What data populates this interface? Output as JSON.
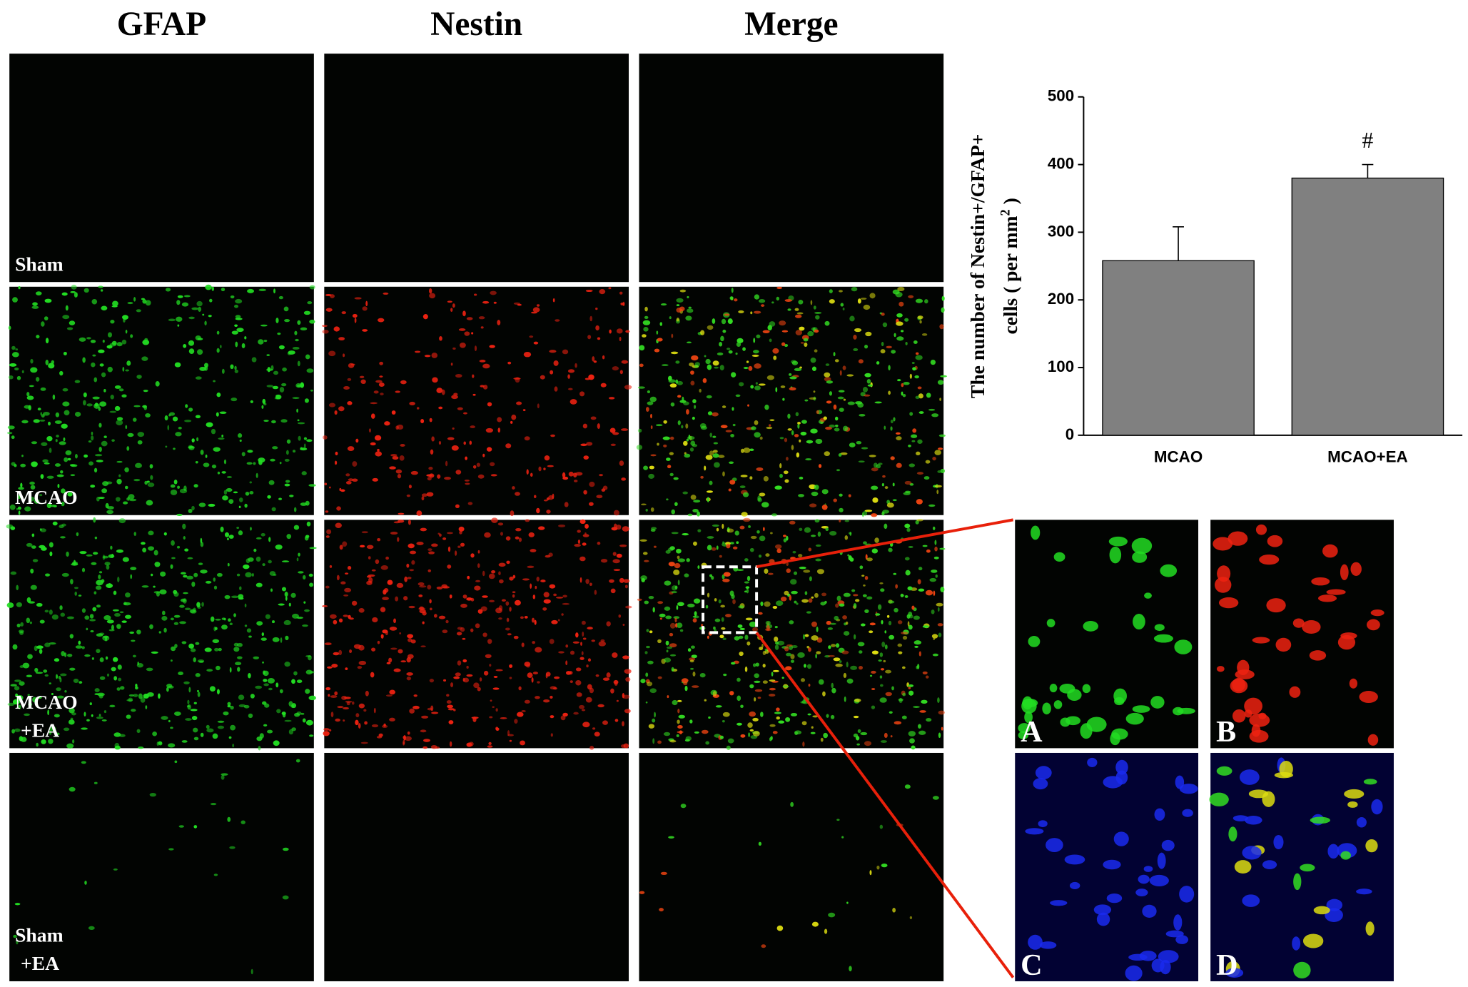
{
  "column_headers": [
    "GFAP",
    "Nestin",
    "Merge"
  ],
  "row_labels": [
    [
      "Sham"
    ],
    [
      "MCAO"
    ],
    [
      "MCAO",
      "+EA"
    ],
    [
      "Sham",
      "+EA"
    ]
  ],
  "inset_labels": [
    "A",
    "B",
    "C",
    "D"
  ],
  "chart_data": {
    "type": "bar",
    "y_label": {
      "line1": "The number of Nestin+/GFAP+",
      "line2": "cells ( per mm",
      "superscript": "2",
      "line2_end": " )"
    },
    "categories": [
      "MCAO",
      "MCAO+EA"
    ],
    "values": [
      258,
      380
    ],
    "errors": [
      50,
      20
    ],
    "annotation": "#",
    "color": "#808080",
    "ylim": [
      0,
      500
    ],
    "yticks": [
      0,
      100,
      200,
      300,
      400,
      500
    ]
  }
}
